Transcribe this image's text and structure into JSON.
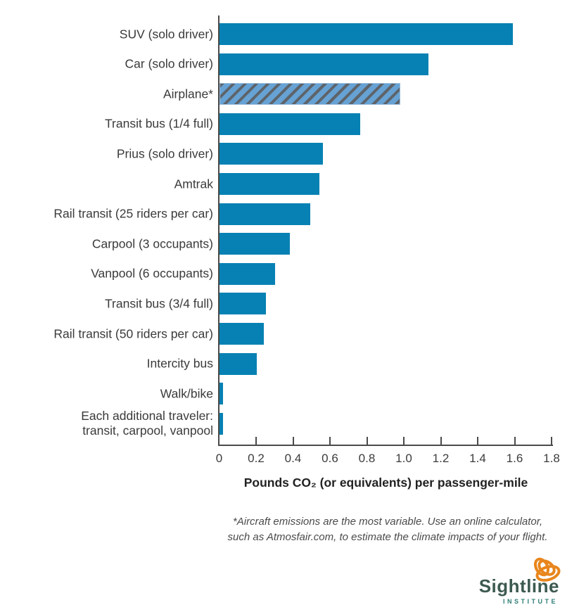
{
  "chart_data": {
    "type": "bar",
    "orientation": "horizontal",
    "title": "",
    "xlabel": "Pounds CO₂ (or equivalents) per passenger-mile",
    "ylabel": "",
    "xlim": [
      0,
      1.8
    ],
    "x_ticks": [
      0,
      0.2,
      0.4,
      0.6,
      0.8,
      1.0,
      1.2,
      1.4,
      1.6,
      1.8
    ],
    "x_tick_labels": [
      "0",
      "0.2",
      "0.4",
      "0.6",
      "0.8",
      "1.0",
      "1.2",
      "1.4",
      "1.6",
      "1.8"
    ],
    "grid": false,
    "legend": "none",
    "bar_color": "#0781b3",
    "hatch_colors": {
      "blue": "#66a2d4",
      "gray": "#5e646a"
    },
    "axis_color": "#4a4a4a",
    "items": [
      {
        "label": "SUV (solo driver)",
        "value": 1.59,
        "hatched": false
      },
      {
        "label": "Car (solo driver)",
        "value": 1.13,
        "hatched": false
      },
      {
        "label": "Airplane*",
        "value": 0.97,
        "hatched": true
      },
      {
        "label": "Transit bus (1/4 full)",
        "value": 0.76,
        "hatched": false
      },
      {
        "label": "Prius (solo driver)",
        "value": 0.56,
        "hatched": false
      },
      {
        "label": "Amtrak",
        "value": 0.54,
        "hatched": false
      },
      {
        "label": "Rail transit (25 riders per car)",
        "value": 0.49,
        "hatched": false
      },
      {
        "label": "Carpool (3 occupants)",
        "value": 0.38,
        "hatched": false
      },
      {
        "label": "Vanpool (6 occupants)",
        "value": 0.3,
        "hatched": false
      },
      {
        "label": "Transit bus (3/4 full)",
        "value": 0.25,
        "hatched": false
      },
      {
        "label": "Rail transit (50 riders per car)",
        "value": 0.24,
        "hatched": false
      },
      {
        "label": "Intercity bus",
        "value": 0.2,
        "hatched": false
      },
      {
        "label": "Walk/bike",
        "value": 0.02,
        "hatched": false
      },
      {
        "label": "Each additional traveler:\ntransit, carpool, vanpool",
        "value": 0.02,
        "hatched": false
      }
    ]
  },
  "footnote": {
    "text": "*Aircraft emissions are the most variable.  Use an online calculator,\nsuch as Atmosfair.com, to estimate the climate impacts of your flight."
  },
  "logo": {
    "name": "Sightline",
    "subtext": "INSTITUTE",
    "knot_color": "#e8861d",
    "name_color": "#3d5a50",
    "subtext_color": "#2e7e76"
  }
}
